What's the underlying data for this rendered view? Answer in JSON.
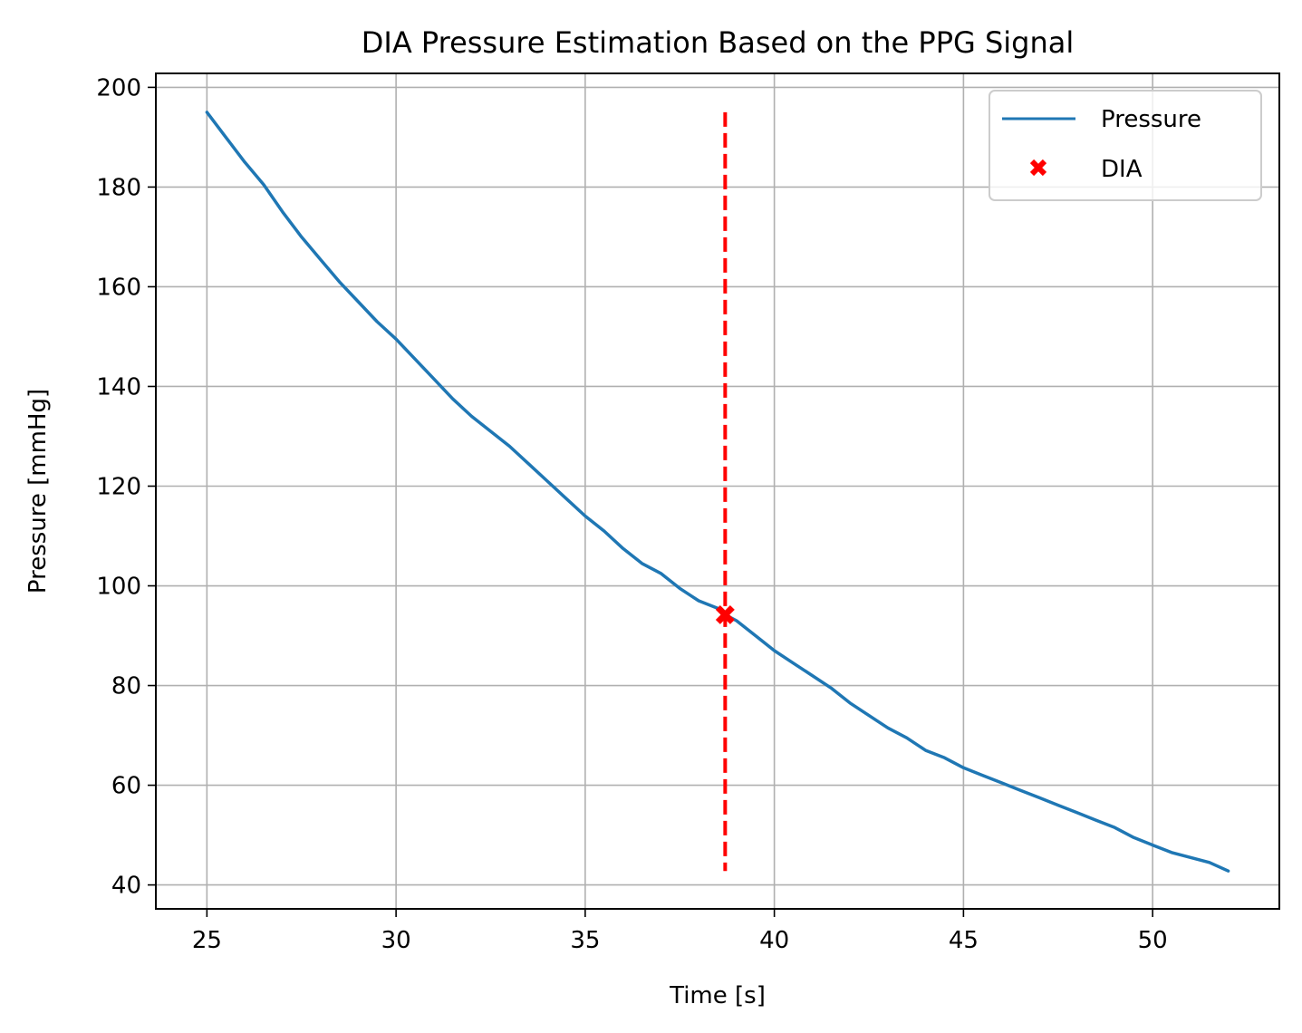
{
  "chart_data": {
    "type": "line",
    "title": "DIA Pressure Estimation Based on the PPG Signal",
    "xlabel": "Time [s]",
    "ylabel": "Pressure [mmHg]",
    "xlim": [
      23.65,
      53.35
    ],
    "ylim": [
      35.2,
      202.8
    ],
    "xticks": [
      25,
      30,
      35,
      40,
      45,
      50
    ],
    "yticks": [
      40,
      60,
      80,
      100,
      120,
      140,
      160,
      180,
      200
    ],
    "grid": true,
    "legend": {
      "placement": "top-right",
      "entries": [
        "Pressure",
        "DIA"
      ]
    },
    "series": [
      {
        "name": "Pressure",
        "kind": "line",
        "color": "#1f77b4",
        "x": [
          25,
          25.5,
          26,
          26.5,
          27,
          27.5,
          28,
          28.5,
          29,
          29.5,
          30,
          30.5,
          31,
          31.5,
          32,
          32.5,
          33,
          33.5,
          34,
          34.5,
          35,
          35.5,
          36,
          36.5,
          37,
          37.5,
          38,
          38.5,
          38.7,
          39,
          39.5,
          40,
          40.5,
          41,
          41.5,
          42,
          42.5,
          43,
          43.5,
          44,
          44.5,
          45,
          45.5,
          46,
          46.5,
          47,
          47.5,
          48,
          48.5,
          49,
          49.5,
          50,
          50.5,
          51,
          51.5,
          52
        ],
        "y": [
          195,
          190,
          185,
          180.5,
          175,
          170,
          165.5,
          161,
          157,
          153,
          149.5,
          145.5,
          141.5,
          137.5,
          134,
          131,
          128,
          124.5,
          121,
          117.5,
          114,
          111,
          107.5,
          104.5,
          102.5,
          99.5,
          97,
          95.5,
          94.2,
          93,
          90,
          87,
          84.5,
          82,
          79.5,
          76.5,
          74,
          71.5,
          69.5,
          67,
          65.5,
          63.5,
          62,
          60.5,
          59,
          57.5,
          56,
          54.5,
          53,
          51.5,
          49.5,
          48,
          46.5,
          45.5,
          44.5,
          42.8
        ]
      },
      {
        "name": "DIA",
        "kind": "marker",
        "marker": "X",
        "color": "#ff0000",
        "x": [
          38.7
        ],
        "y": [
          94.2
        ]
      }
    ],
    "annotations": [
      {
        "kind": "vline",
        "style": "dashed",
        "color": "#ff0000",
        "x": 38.7,
        "y_range": [
          42.8,
          195
        ]
      }
    ]
  }
}
